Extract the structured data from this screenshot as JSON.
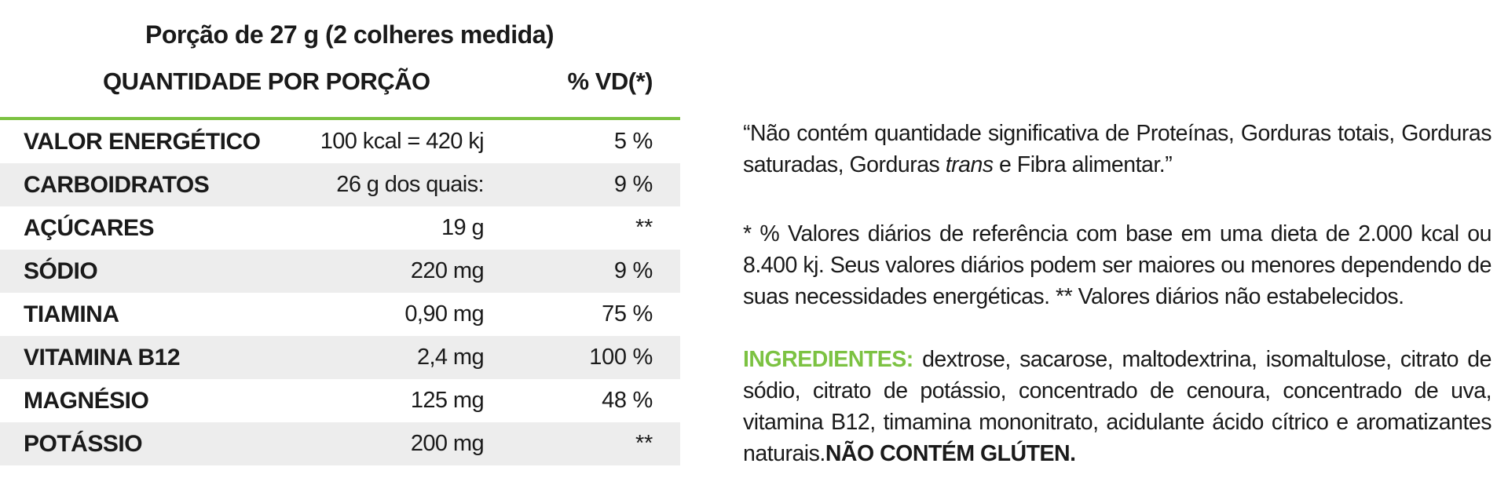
{
  "serving": "Porção de 27 g (2 colheres medida)",
  "headers": {
    "quantity": "QUANTIDADE POR PORÇÃO",
    "daily_value": "% VD(*)"
  },
  "rows": [
    {
      "name": "VALOR ENERGÉTICO",
      "amount": "100 kcal = 420 kj",
      "vd": "5 %"
    },
    {
      "name": "CARBOIDRATOS",
      "amount": "26 g dos quais:",
      "vd": "9 %"
    },
    {
      "name": "AÇÚCARES",
      "amount": "19 g",
      "vd": "**"
    },
    {
      "name": "SÓDIO",
      "amount": "220 mg",
      "vd": "9 %"
    },
    {
      "name": "TIAMINA",
      "amount": "0,90 mg",
      "vd": "75 %"
    },
    {
      "name": "VITAMINA B12",
      "amount": "2,4 mg",
      "vd": "100 %"
    },
    {
      "name": "MAGNÉSIO",
      "amount": "125 mg",
      "vd": "48 %"
    },
    {
      "name": "POTÁSSIO",
      "amount": "200 mg",
      "vd": "**"
    }
  ],
  "claim": {
    "before": "“Não contém quantidade significativa de Proteínas, Gorduras totais, Gorduras saturadas, Gorduras ",
    "italic": "trans",
    "after": " e Fibra alimentar.”"
  },
  "footnote": "* % Valores diários de referência com base em uma dieta de 2.000 kcal ou 8.400 kj. Seus valores diários podem ser maiores ou menores dependendo de suas necessidades energéticas. ** Valores diários não estabelecidos.",
  "ingredients": {
    "label": "INGREDIENTES:",
    "text": " dextrose, sacarose, maltodextrina, isomaltulose, citrato de sódio, citrato de potássio, concentrado de cenoura, concentrado de uva, vitamina B12, timamina mononitrato, acidulante ácido cítrico e aromatizantes naturais.",
    "gluten": "NÃO CONTÉM GLÚTEN."
  },
  "colors": {
    "accent_green": "#7cc242",
    "row_shade": "#ededed",
    "text": "#1a1a1a"
  }
}
